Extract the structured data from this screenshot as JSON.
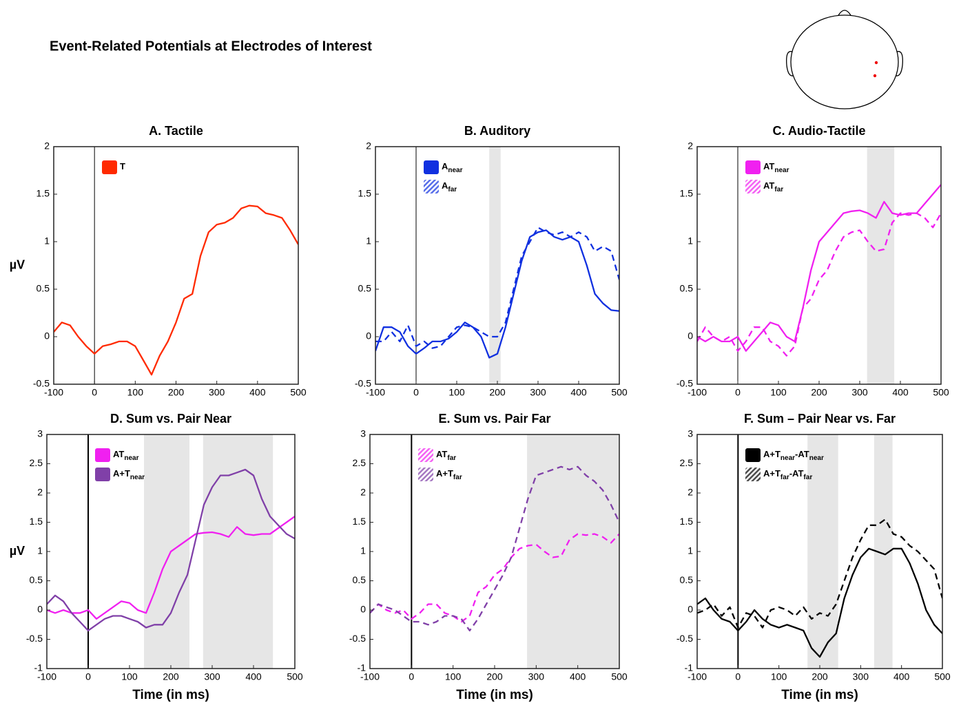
{
  "title": "Event-Related Potentials at Electrodes of Interest",
  "chart_data": [
    {
      "type": "line",
      "title": "A. Tactile",
      "ylabel": "µV",
      "legend": "upper left",
      "vline": 0,
      "x": [
        -100,
        -80,
        -60,
        -40,
        -20,
        0,
        20,
        40,
        60,
        80,
        100,
        120,
        140,
        160,
        180,
        200,
        220,
        240,
        260,
        280,
        300,
        320,
        340,
        360,
        380,
        400,
        420,
        440,
        460,
        480,
        500
      ],
      "xlim": [
        -100,
        500
      ],
      "xticks": [
        -100,
        0,
        100,
        200,
        300,
        400,
        500
      ],
      "ylim": [
        -0.5,
        2
      ],
      "yticks": [
        -0.5,
        0,
        0.5,
        1,
        1.5,
        2
      ],
      "shaded": [],
      "series": [
        {
          "name": [
            "T"
          ],
          "color": "#ff2a00",
          "dash": false,
          "values": [
            0.05,
            0.15,
            0.12,
            0.0,
            -0.1,
            -0.18,
            -0.1,
            -0.08,
            -0.05,
            -0.05,
            -0.1,
            -0.25,
            -0.4,
            -0.2,
            -0.05,
            0.15,
            0.4,
            0.45,
            0.85,
            1.1,
            1.18,
            1.2,
            1.25,
            1.35,
            1.38,
            1.37,
            1.3,
            1.28,
            1.25,
            1.12,
            0.97
          ]
        }
      ]
    },
    {
      "type": "line",
      "title": "B. Auditory",
      "legend": "upper left",
      "vline": 0,
      "x": [
        -100,
        -80,
        -60,
        -40,
        -20,
        0,
        20,
        40,
        60,
        80,
        100,
        120,
        140,
        160,
        180,
        200,
        220,
        240,
        260,
        280,
        300,
        320,
        340,
        360,
        380,
        400,
        420,
        440,
        460,
        480,
        500
      ],
      "xlim": [
        -100,
        500
      ],
      "xticks": [
        -100,
        0,
        100,
        200,
        300,
        400,
        500
      ],
      "ylim": [
        -0.5,
        2
      ],
      "yticks": [
        -0.5,
        0,
        0.5,
        1,
        1.5,
        2
      ],
      "shaded": [
        [
          180,
          208
        ]
      ],
      "series": [
        {
          "name": [
            "A",
            "near"
          ],
          "color": "#1030e0",
          "dash": false,
          "values": [
            -0.15,
            0.1,
            0.1,
            0.05,
            -0.1,
            -0.18,
            -0.12,
            -0.05,
            -0.05,
            -0.02,
            0.05,
            0.15,
            0.1,
            0.0,
            -0.22,
            -0.18,
            0.1,
            0.45,
            0.8,
            1.05,
            1.1,
            1.12,
            1.05,
            1.02,
            1.05,
            1.0,
            0.75,
            0.45,
            0.35,
            0.28,
            0.27
          ]
        },
        {
          "name": [
            "A",
            "far"
          ],
          "color": "#1030e0",
          "dash": true,
          "values": [
            -0.05,
            -0.05,
            0.05,
            -0.05,
            0.12,
            -0.1,
            -0.05,
            -0.12,
            -0.1,
            0.0,
            0.1,
            0.12,
            0.1,
            0.05,
            0.0,
            0.0,
            0.15,
            0.5,
            0.85,
            1.0,
            1.15,
            1.1,
            1.07,
            1.1,
            1.05,
            1.1,
            1.05,
            0.9,
            0.95,
            0.9,
            0.6
          ]
        }
      ]
    },
    {
      "type": "line",
      "title": "C. Audio-Tactile",
      "legend": "upper left",
      "vline": 0,
      "x": [
        -100,
        -80,
        -60,
        -40,
        -20,
        0,
        20,
        40,
        60,
        80,
        100,
        120,
        140,
        160,
        180,
        200,
        220,
        240,
        260,
        280,
        300,
        320,
        340,
        360,
        380,
        400,
        420,
        440,
        460,
        480,
        500
      ],
      "xlim": [
        -100,
        500
      ],
      "xticks": [
        -100,
        0,
        100,
        200,
        300,
        400,
        500
      ],
      "ylim": [
        -0.5,
        2
      ],
      "yticks": [
        -0.5,
        0,
        0.5,
        1,
        1.5,
        2
      ],
      "shaded": [
        [
          318,
          385
        ]
      ],
      "series": [
        {
          "name": [
            "AT",
            "near"
          ],
          "color": "#f020f0",
          "dash": false,
          "values": [
            0.0,
            -0.05,
            0.0,
            -0.05,
            -0.05,
            0.0,
            -0.15,
            -0.05,
            0.05,
            0.15,
            0.12,
            0.0,
            -0.05,
            0.3,
            0.7,
            1.0,
            1.1,
            1.2,
            1.3,
            1.32,
            1.33,
            1.3,
            1.25,
            1.42,
            1.3,
            1.28,
            1.3,
            1.3,
            1.4,
            1.5,
            1.6
          ]
        },
        {
          "name": [
            "AT",
            "far"
          ],
          "color": "#f020f0",
          "dash": true,
          "values": [
            -0.05,
            0.1,
            0.0,
            -0.05,
            0.0,
            -0.15,
            -0.05,
            0.1,
            0.1,
            -0.05,
            -0.1,
            -0.2,
            -0.1,
            0.3,
            0.4,
            0.6,
            0.7,
            0.9,
            1.05,
            1.1,
            1.12,
            1.0,
            0.9,
            0.92,
            1.2,
            1.3,
            1.28,
            1.3,
            1.25,
            1.15,
            1.3
          ]
        }
      ]
    },
    {
      "type": "line",
      "title": "D. Sum vs. Pair Near",
      "ylabel": "µV",
      "xlabel": "Time (in ms)",
      "legend": "upper left",
      "vline": 0,
      "x": [
        -100,
        -80,
        -60,
        -40,
        -20,
        0,
        20,
        40,
        60,
        80,
        100,
        120,
        140,
        160,
        180,
        200,
        220,
        240,
        260,
        280,
        300,
        320,
        340,
        360,
        380,
        400,
        420,
        440,
        460,
        480,
        500
      ],
      "xlim": [
        -100,
        500
      ],
      "xticks": [
        -100,
        0,
        100,
        200,
        300,
        400,
        500
      ],
      "ylim": [
        -1,
        3
      ],
      "yticks": [
        -1,
        -0.5,
        0,
        0.5,
        1,
        1.5,
        2,
        2.5,
        3
      ],
      "shaded": [
        [
          135,
          245
        ],
        [
          278,
          447
        ]
      ],
      "series": [
        {
          "name": [
            "AT",
            "near"
          ],
          "color": "#f020f0",
          "dash": false,
          "values": [
            0.0,
            -0.05,
            0.0,
            -0.05,
            -0.05,
            0.0,
            -0.15,
            -0.05,
            0.05,
            0.15,
            0.12,
            0.0,
            -0.05,
            0.3,
            0.7,
            1.0,
            1.1,
            1.2,
            1.3,
            1.32,
            1.33,
            1.3,
            1.25,
            1.42,
            1.3,
            1.28,
            1.3,
            1.3,
            1.4,
            1.5,
            1.6
          ]
        },
        {
          "name": [
            "A+T",
            "near"
          ],
          "color": "#8040a8",
          "dash": false,
          "values": [
            0.1,
            0.25,
            0.15,
            -0.05,
            -0.2,
            -0.35,
            -0.25,
            -0.15,
            -0.1,
            -0.1,
            -0.15,
            -0.2,
            -0.3,
            -0.25,
            -0.25,
            -0.05,
            0.3,
            0.6,
            1.2,
            1.8,
            2.1,
            2.3,
            2.3,
            2.35,
            2.4,
            2.3,
            1.9,
            1.6,
            1.45,
            1.3,
            1.22
          ]
        }
      ]
    },
    {
      "type": "line",
      "title": "E. Sum vs. Pair Far",
      "xlabel": "Time (in ms)",
      "legend": "upper left",
      "vline": 0,
      "x": [
        -100,
        -80,
        -60,
        -40,
        -20,
        0,
        20,
        40,
        60,
        80,
        100,
        120,
        140,
        160,
        180,
        200,
        220,
        240,
        260,
        280,
        300,
        320,
        340,
        360,
        380,
        400,
        420,
        440,
        460,
        480,
        500
      ],
      "xlim": [
        -100,
        500
      ],
      "xticks": [
        -100,
        0,
        100,
        200,
        300,
        400,
        500
      ],
      "ylim": [
        -1,
        3
      ],
      "yticks": [
        -1,
        -0.5,
        0,
        0.5,
        1,
        1.5,
        2,
        2.5,
        3
      ],
      "shaded": [
        [
          278,
          500
        ]
      ],
      "series": [
        {
          "name": [
            "AT",
            "far"
          ],
          "color": "#f020f0",
          "dash": true,
          "values": [
            -0.05,
            0.1,
            0.0,
            -0.05,
            0.0,
            -0.15,
            -0.05,
            0.1,
            0.1,
            -0.05,
            -0.1,
            -0.2,
            -0.1,
            0.3,
            0.4,
            0.6,
            0.7,
            0.9,
            1.05,
            1.1,
            1.12,
            1.0,
            0.9,
            0.92,
            1.2,
            1.3,
            1.28,
            1.3,
            1.25,
            1.15,
            1.3
          ]
        },
        {
          "name": [
            "A+T",
            "far"
          ],
          "color": "#8040a8",
          "dash": true,
          "values": [
            -0.05,
            0.1,
            0.05,
            0.0,
            -0.1,
            -0.2,
            -0.2,
            -0.25,
            -0.2,
            -0.1,
            -0.1,
            -0.15,
            -0.35,
            -0.15,
            0.1,
            0.35,
            0.6,
            0.9,
            1.4,
            1.9,
            2.3,
            2.35,
            2.4,
            2.45,
            2.4,
            2.45,
            2.3,
            2.2,
            2.05,
            1.8,
            1.5
          ]
        }
      ]
    },
    {
      "type": "line",
      "title": "F. Sum – Pair Near vs. Far",
      "xlabel": "Time (in ms)",
      "legend": "upper left",
      "vline": 0,
      "x": [
        -100,
        -80,
        -60,
        -40,
        -20,
        0,
        20,
        40,
        60,
        80,
        100,
        120,
        140,
        160,
        180,
        200,
        220,
        240,
        260,
        280,
        300,
        320,
        340,
        360,
        380,
        400,
        420,
        440,
        460,
        480,
        500
      ],
      "xlim": [
        -100,
        500
      ],
      "xticks": [
        -100,
        0,
        100,
        200,
        300,
        400,
        500
      ],
      "ylim": [
        -1,
        3
      ],
      "yticks": [
        -1,
        -0.5,
        0,
        0.5,
        1,
        1.5,
        2,
        2.5,
        3
      ],
      "shaded": [
        [
          170,
          245
        ],
        [
          333,
          378
        ]
      ],
      "series": [
        {
          "name": [
            "A+T",
            "near",
            "-AT",
            "near"
          ],
          "color": "#000000",
          "dash": false,
          "values": [
            0.1,
            0.2,
            0.0,
            -0.15,
            -0.2,
            -0.35,
            -0.2,
            0.0,
            -0.15,
            -0.25,
            -0.3,
            -0.25,
            -0.3,
            -0.35,
            -0.65,
            -0.8,
            -0.55,
            -0.4,
            0.2,
            0.6,
            0.9,
            1.05,
            1.0,
            0.95,
            1.05,
            1.05,
            0.8,
            0.45,
            0.0,
            -0.25,
            -0.4
          ]
        },
        {
          "name": [
            "A+T",
            "far",
            "-AT",
            "far"
          ],
          "color": "#000000",
          "dash": true,
          "values": [
            -0.05,
            0.0,
            0.1,
            -0.1,
            0.05,
            -0.3,
            -0.05,
            -0.1,
            -0.3,
            0.0,
            0.05,
            0.0,
            -0.1,
            0.05,
            -0.15,
            -0.05,
            -0.1,
            0.1,
            0.5,
            0.9,
            1.2,
            1.45,
            1.45,
            1.55,
            1.3,
            1.25,
            1.1,
            1.0,
            0.85,
            0.7,
            0.2
          ]
        }
      ]
    }
  ]
}
